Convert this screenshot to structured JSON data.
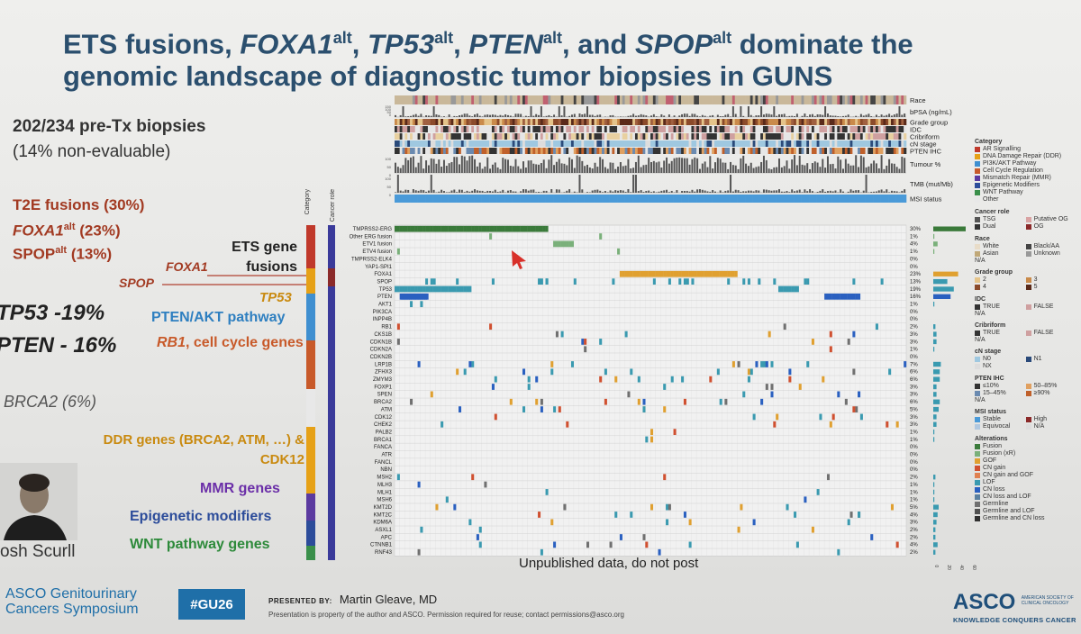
{
  "title": {
    "line1_a": "ETS fusions, ",
    "foxa1": "FOXA1",
    "tp53": "TP53",
    "pten": "PTEN",
    "spop": "SPOP",
    "alt": "alt",
    "line1_b": " dominate the",
    "line2": "genomic landscape of diagnostic tumor biopsies in GUNS"
  },
  "left": {
    "biopsies": "202/234 pre-Tx biopsies",
    "nonevaluable": "(14% non-evaluable)",
    "t2e": "T2E fusions (30%)",
    "foxa1": "FOXA1",
    "foxa1_pct": " (23%)",
    "spop": "SPOP",
    "spop_pct": " (13%)",
    "alt": "alt",
    "tp53": "TP53 -19%",
    "pten": "PTEN - 16%",
    "brca2": "BRCA2 (6%)",
    "ets_line1": "ETS gene",
    "ets_line2": "fusions",
    "arrow_foxa1": "FOXA1",
    "arrow_spop": "SPOP",
    "tp53_label": "TP53",
    "pten_akt": "PTEN/AKT pathway",
    "rb1": "RB1",
    "cell_cycle": ", cell cycle genes",
    "ddr_line1": "DDR genes (BRCA2, ATM, …) &",
    "ddr_line2": "CDK12",
    "mmr": "MMR genes",
    "epi": "Epigenetic modifiers",
    "wnt": "WNT pathway genes",
    "presenter_name": "osh Scurll"
  },
  "column_headers": {
    "category": "Category",
    "cancer_role": "Cancer role"
  },
  "tracks": [
    "Race",
    "bPSA (ng/mL)",
    "Grade group",
    "IDC",
    "Cribriform",
    "cN stage",
    "PTEN IHC",
    "Tumour %",
    "TMB (mut/Mb)",
    "MSI status"
  ],
  "bpsa_ticks": [
    "150",
    "100",
    "50",
    "0"
  ],
  "tumour_ticks": [
    "100",
    "50",
    "0"
  ],
  "tmb_ticks": [
    "100",
    "50",
    "0"
  ],
  "genes": [
    {
      "name": "TMPRSS2-ERG",
      "pct": "30%"
    },
    {
      "name": "Other ERG fusion",
      "pct": "1%"
    },
    {
      "name": "ETV1 fusion",
      "pct": "4%"
    },
    {
      "name": "ETV4 fusion",
      "pct": "1%"
    },
    {
      "name": "TMPRSS2-ELK4",
      "pct": "0%"
    },
    {
      "name": "YAP1-SPI1",
      "pct": "0%"
    },
    {
      "name": "FOXA1",
      "pct": "23%"
    },
    {
      "name": "SPOP",
      "pct": "13%"
    },
    {
      "name": "TP53",
      "pct": "19%"
    },
    {
      "name": "PTEN",
      "pct": "16%"
    },
    {
      "name": "AKT1",
      "pct": "1%"
    },
    {
      "name": "PIK3CA",
      "pct": "0%"
    },
    {
      "name": "INPP4B",
      "pct": "0%"
    },
    {
      "name": "RB1",
      "pct": "2%"
    },
    {
      "name": "CKS1B",
      "pct": "3%"
    },
    {
      "name": "CDKN1B",
      "pct": "3%"
    },
    {
      "name": "CDKN2A",
      "pct": "1%"
    },
    {
      "name": "CDKN2B",
      "pct": "0%"
    },
    {
      "name": "LRP1B",
      "pct": "7%"
    },
    {
      "name": "ZFHX3",
      "pct": "6%"
    },
    {
      "name": "ZMYM3",
      "pct": "6%"
    },
    {
      "name": "FOXP1",
      "pct": "3%"
    },
    {
      "name": "SPEN",
      "pct": "3%"
    },
    {
      "name": "BRCA2",
      "pct": "6%"
    },
    {
      "name": "ATM",
      "pct": "5%"
    },
    {
      "name": "CDK12",
      "pct": "3%"
    },
    {
      "name": "CHEK2",
      "pct": "3%"
    },
    {
      "name": "PALB2",
      "pct": "1%"
    },
    {
      "name": "BRCA1",
      "pct": "1%"
    },
    {
      "name": "FANCA",
      "pct": "0%"
    },
    {
      "name": "ATR",
      "pct": "0%"
    },
    {
      "name": "FANCL",
      "pct": "0%"
    },
    {
      "name": "NBN",
      "pct": "0%"
    },
    {
      "name": "MSH2",
      "pct": "2%"
    },
    {
      "name": "MLH3",
      "pct": "1%"
    },
    {
      "name": "MLH1",
      "pct": "1%"
    },
    {
      "name": "MSH6",
      "pct": "1%"
    },
    {
      "name": "KMT2D",
      "pct": "5%"
    },
    {
      "name": "KMT2C",
      "pct": "4%"
    },
    {
      "name": "KDM6A",
      "pct": "3%"
    },
    {
      "name": "ASXL1",
      "pct": "2%"
    },
    {
      "name": "APC",
      "pct": "2%"
    },
    {
      "name": "CTNNB1",
      "pct": "4%"
    },
    {
      "name": "RNF43",
      "pct": "2%"
    }
  ],
  "legend": {
    "category_title": "Category",
    "category_items": [
      {
        "label": "AR Signalling",
        "color": "#c0392b"
      },
      {
        "label": "DNA Damage Repair (DDR)",
        "color": "#e6a117"
      },
      {
        "label": "PI3K/AKT Pathway",
        "color": "#3f8fd0"
      },
      {
        "label": "Cell Cycle Regulation",
        "color": "#c85a2a"
      },
      {
        "label": "Mismatch Repair (MMR)",
        "color": "#5b3aa0"
      },
      {
        "label": "Epigenetic Modifiers",
        "color": "#2c4c9a"
      },
      {
        "label": "WNT Pathway",
        "color": "#3a8f4a"
      },
      {
        "label": "Other",
        "color": "#e8e8e8"
      }
    ],
    "role_title": "Cancer role",
    "role_items": [
      {
        "label": "TSG",
        "color": "#555"
      },
      {
        "label": "Putative OG",
        "color": "#d9a3a3"
      },
      {
        "label": "Dual",
        "color": "#333"
      },
      {
        "label": "OG",
        "color": "#8b2a2a"
      }
    ],
    "race_title": "Race",
    "race_items": [
      {
        "label": "White",
        "color": "#e8dcc8"
      },
      {
        "label": "Black/AA",
        "color": "#444"
      },
      {
        "label": "Asian",
        "color": "#c0a878"
      },
      {
        "label": "Unknown",
        "color": "#999"
      }
    ],
    "race_na": "N/A",
    "grade_title": "Grade group",
    "grade_items": [
      {
        "label": "2",
        "color": "#e5c48a"
      },
      {
        "label": "3",
        "color": "#c98a4a"
      },
      {
        "label": "4",
        "color": "#8b4a2a"
      },
      {
        "label": "5",
        "color": "#5a2a1a"
      }
    ],
    "idc_title": "IDC",
    "idc_items": [
      {
        "label": "TRUE",
        "color": "#333"
      },
      {
        "label": "FALSE",
        "color": "#cfa0a0"
      }
    ],
    "idc_na": "N/A",
    "crib_title": "Cribriform",
    "crib_items": [
      {
        "label": "TRUE",
        "color": "#333"
      },
      {
        "label": "FALSE",
        "color": "#cfa0a0"
      }
    ],
    "crib_na": "N/A",
    "cn_title": "cN stage",
    "cn_items": [
      {
        "label": "N0",
        "color": "#9fc8e0"
      },
      {
        "label": "N1",
        "color": "#2a4a7a"
      },
      {
        "label": "NX",
        "color": "#ddd"
      }
    ],
    "pten_title": "PTEN IHC",
    "pten_items": [
      {
        "label": "≤10%",
        "color": "#333"
      },
      {
        "label": "50–85%",
        "color": "#e0a060"
      },
      {
        "label": "15–45%",
        "color": "#6a8ab0"
      },
      {
        "label": "≥90%",
        "color": "#c0602a"
      }
    ],
    "pten_na": "N/A",
    "msi_title": "MSI status",
    "msi_items": [
      {
        "label": "Stable",
        "color": "#4a9ad8"
      },
      {
        "label": "High",
        "color": "#8b2a2a"
      },
      {
        "label": "Equivocal",
        "color": "#b0c8e0"
      },
      {
        "label": "N/A",
        "color": "#ddd"
      }
    ],
    "alt_title": "Alterations",
    "alt_items": [
      {
        "label": "Fusion",
        "color": "#3a7a3a"
      },
      {
        "label": "Fusion (xR)",
        "color": "#7ab07a"
      },
      {
        "label": "GOF",
        "color": "#e0a030"
      },
      {
        "label": "CN gain",
        "color": "#d05030"
      },
      {
        "label": "CN gain and GOF",
        "color": "#e08050"
      },
      {
        "label": "LOF",
        "color": "#3a9ab0"
      },
      {
        "label": "CN loss",
        "color": "#2a60c0"
      },
      {
        "label": "CN loss and LOF",
        "color": "#5a80a0"
      },
      {
        "label": "Germline",
        "color": "#707070"
      },
      {
        "label": "Germline and LOF",
        "color": "#505050"
      },
      {
        "label": "Germline and CN loss",
        "color": "#303030"
      }
    ]
  },
  "bottom_axis": [
    "0",
    "20",
    "40",
    "60"
  ],
  "watermark": "Unpublished data, do not post",
  "footer": {
    "asco_line1": "ASCO Genitourinary",
    "asco_line2": "Cancers Symposium",
    "hashtag": "#GU26",
    "presented_by": "PRESENTED BY:",
    "presenter": "Martin Gleave, MD",
    "permission": "Presentation is property of the author and ASCO. Permission required for reuse; contact permissions@asco.org",
    "asco_logo": "ASCO",
    "asco_full1": "AMERICAN SOCIETY OF",
    "asco_full2": "CLINICAL ONCOLOGY",
    "tagline": "KNOWLEDGE CONQUERS CANCER"
  }
}
